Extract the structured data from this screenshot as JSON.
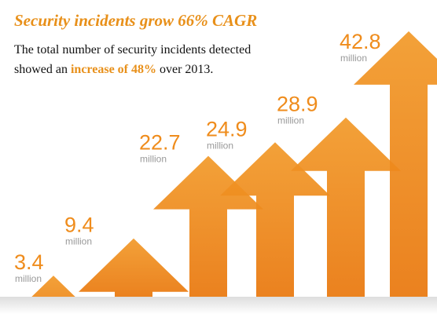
{
  "chart_data": {
    "type": "arrow",
    "title": "Security incidents grow 66% CAGR",
    "subtitle_parts": [
      "The total number of security incidents detected showed an ",
      "increase of 48%",
      " over 2013."
    ],
    "values": [
      3.4,
      9.4,
      22.7,
      24.9,
      28.9,
      42.8
    ],
    "unit_label": "million",
    "color": "#ef8c1c",
    "accent_color": "#e8901a"
  }
}
